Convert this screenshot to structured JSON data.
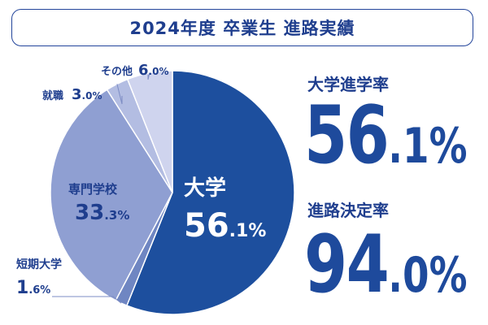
{
  "title": "2024年度 卒業生 進路実績",
  "rates": {
    "university": {
      "label": "大学進学率",
      "int": "56",
      "dec": ".1%"
    },
    "decided": {
      "label": "進路決定率",
      "int": "94",
      "dec": ".0%"
    }
  },
  "chart_data": {
    "type": "pie",
    "title": "2024年度 卒業生 進路実績",
    "slices": [
      {
        "name": "大学",
        "value": 56.1,
        "int": "56",
        "dec": ".1%",
        "color": "#1d4f9e"
      },
      {
        "name": "短期大学",
        "value": 1.6,
        "int": "1",
        "dec": ".6%",
        "color": "#6f86c2"
      },
      {
        "name": "専門学校",
        "value": 33.3,
        "int": "33",
        "dec": ".3%",
        "color": "#8f9fd2"
      },
      {
        "name": "就職",
        "value": 3.0,
        "int": "3",
        "dec": ".0%",
        "color": "#b3bde2"
      },
      {
        "name": "その他",
        "value": 6.0,
        "int": "6",
        "dec": ".0%",
        "color": "#cfd4ee"
      }
    ]
  }
}
